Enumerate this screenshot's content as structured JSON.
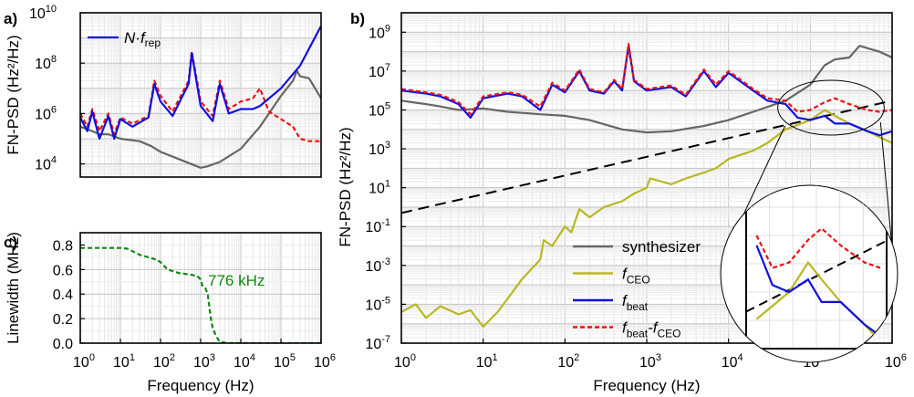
{
  "chart_data": [
    {
      "panel": "a)",
      "type": "line",
      "ylabel": "FN-PSD (Hz²/Hz)",
      "xscale": "log",
      "yscale": "log",
      "xlim": [
        1,
        1000000
      ],
      "ylim": [
        3000,
        10000000000
      ],
      "y_ticks": [
        {
          "base": "10",
          "exp": "4"
        },
        {
          "base": "10",
          "exp": "6"
        },
        {
          "base": "10",
          "exp": "8"
        },
        {
          "base": "10",
          "exp": "10"
        }
      ],
      "grid": true,
      "legend": {
        "placement": "top-left",
        "entries": [
          {
            "label": "N·f",
            "sub": "rep",
            "color": "#1010e0",
            "dash": "solid"
          }
        ]
      },
      "series": [
        {
          "name": "synthesizer",
          "color": "#666666",
          "dash": "solid",
          "x": [
            1,
            2,
            3,
            5,
            10,
            30,
            60,
            100,
            300,
            1000,
            1500,
            3000,
            10000,
            30000,
            100000,
            200000,
            250000,
            300000,
            500000,
            1000000
          ],
          "y": [
            300000,
            200000,
            150000,
            150000,
            100000,
            80000,
            50000,
            30000,
            15000,
            7000,
            8000,
            12000,
            40000,
            300000,
            5000000,
            20000000,
            50000000,
            30000000,
            25000000,
            4000000
          ]
        },
        {
          "name": "f_beat - f_CEO (a)",
          "color": "#ee1111",
          "dash": "dashed",
          "x": [
            1,
            1.5,
            2,
            3,
            5,
            7,
            10,
            20,
            50,
            70,
            100,
            200,
            500,
            600,
            1000,
            2000,
            3000,
            5000,
            10000,
            20000,
            30000,
            50000,
            100000,
            200000,
            300000,
            500000,
            1000000
          ],
          "y": [
            1000000,
            300000,
            1500000,
            200000,
            1000000,
            150000,
            700000,
            400000,
            800000,
            20000000,
            5000000,
            1200000,
            20000000,
            300000000,
            3000000,
            800000,
            20000000,
            1500000,
            3000000,
            4000000,
            10000000,
            1200000,
            600000,
            300000,
            100000,
            80000,
            80000
          ]
        },
        {
          "name": "N·f_rep",
          "color": "#1010e0",
          "dash": "solid",
          "x": [
            1,
            1.5,
            2,
            3,
            5,
            7,
            10,
            20,
            50,
            70,
            100,
            200,
            500,
            600,
            1000,
            2000,
            3000,
            5000,
            10000,
            20000,
            30000,
            100000,
            300000,
            1000000
          ],
          "y": [
            700000,
            200000,
            1200000,
            100000,
            800000,
            100000,
            600000,
            300000,
            700000,
            15000000,
            3000000,
            800000,
            15000000,
            250000000,
            2000000,
            500000,
            15000000,
            1000000,
            1500000,
            1500000,
            2000000,
            10000000,
            80000000,
            3000000000
          ]
        }
      ]
    },
    {
      "panel": "b)",
      "type": "line",
      "ylabel": "FN-PSD (Hz²/Hz)",
      "xlabel": "Frequency (Hz)",
      "xscale": "log",
      "yscale": "log",
      "xlim": [
        1,
        1000000
      ],
      "ylim": [
        1e-07,
        10000000000
      ],
      "x_ticks": [
        {
          "base": "10",
          "exp": "0"
        },
        {
          "base": "10",
          "exp": "1"
        },
        {
          "base": "10",
          "exp": "2"
        },
        {
          "base": "10",
          "exp": "3"
        },
        {
          "base": "10",
          "exp": "4"
        },
        {
          "base": "10",
          "exp": "5"
        },
        {
          "base": "10",
          "exp": "6"
        }
      ],
      "y_ticks": [
        {
          "base": "10",
          "exp": "-7"
        },
        {
          "base": "10",
          "exp": "-5"
        },
        {
          "base": "10",
          "exp": "-3"
        },
        {
          "base": "10",
          "exp": "-1"
        },
        {
          "base": "10",
          "exp": "1"
        },
        {
          "base": "10",
          "exp": "3"
        },
        {
          "base": "10",
          "exp": "5"
        },
        {
          "base": "10",
          "exp": "7"
        },
        {
          "base": "10",
          "exp": "9"
        }
      ],
      "grid": true,
      "legend": {
        "placement": "bottom-center",
        "entries": [
          {
            "label": "synthesizer",
            "color": "#666666",
            "dash": "solid"
          },
          {
            "label": "f",
            "sub": "CEO",
            "color": "#b8b820",
            "dash": "solid"
          },
          {
            "label": "f",
            "sub": "beat",
            "color": "#1010e0",
            "dash": "solid"
          },
          {
            "label": "f",
            "sub": "beat",
            "label2": "-f",
            "sub2": "CEO",
            "color": "#ee1111",
            "dash": "dashed"
          }
        ]
      },
      "reference_line": {
        "color": "#000000",
        "dash": "long-dashed",
        "x": [
          1,
          1000000
        ],
        "y": [
          0.5,
          300000
        ]
      },
      "series": [
        {
          "name": "synthesizer",
          "color": "#666666",
          "dash": "solid",
          "x": [
            1,
            2,
            3,
            5,
            10,
            20,
            50,
            100,
            200,
            500,
            1000,
            2000,
            5000,
            10000,
            20000,
            50000,
            100000,
            150000,
            200000,
            300000,
            400000,
            500000,
            700000,
            1000000
          ],
          "y": [
            300000,
            200000,
            150000,
            100000,
            120000,
            80000,
            60000,
            50000,
            30000,
            10000,
            7000,
            8000,
            15000,
            30000,
            80000,
            300000,
            2000000,
            20000000,
            40000000,
            50000000,
            200000000,
            150000000,
            100000000,
            50000000
          ]
        },
        {
          "name": "f_CEO",
          "color": "#b8b820",
          "dash": "solid",
          "x": [
            1,
            1.5,
            2,
            3,
            5,
            7,
            10,
            15,
            20,
            30,
            50,
            55,
            70,
            100,
            120,
            150,
            200,
            300,
            500,
            700,
            1000,
            1100,
            2000,
            3000,
            5000,
            7000,
            10000,
            20000,
            30000,
            50000,
            100000,
            150000,
            200000,
            300000,
            500000,
            700000,
            1000000
          ],
          "y": [
            4e-06,
            1e-05,
            2e-06,
            8e-06,
            3e-06,
            5e-06,
            7e-07,
            4e-06,
            2e-05,
            0.0002,
            0.002,
            0.02,
            0.01,
            0.1,
            0.05,
            0.8,
            0.3,
            1,
            2,
            5,
            10,
            30,
            15,
            30,
            60,
            100,
            300,
            800,
            2000,
            10000,
            30000,
            100000,
            50000,
            20000,
            8000,
            4000,
            2000
          ]
        },
        {
          "name": "f_beat",
          "color": "#1010e0",
          "dash": "solid",
          "x": [
            1,
            2,
            3,
            5,
            7,
            10,
            20,
            30,
            50,
            70,
            100,
            150,
            200,
            300,
            400,
            500,
            600,
            700,
            1000,
            2000,
            3000,
            5000,
            7000,
            10000,
            20000,
            30000,
            50000,
            70000,
            100000,
            150000,
            200000,
            300000,
            500000,
            700000,
            1000000
          ],
          "y": [
            1000000,
            700000,
            500000,
            200000,
            40000,
            400000,
            700000,
            500000,
            100000,
            2000000,
            800000,
            10000000,
            1000000,
            700000,
            3000000,
            1000000,
            200000000,
            3000000,
            1000000,
            1500000,
            500000,
            10000000,
            1500000,
            8000000,
            1000000,
            300000,
            200000,
            40000,
            30000,
            50000,
            20000,
            20000,
            8000,
            5000,
            8000
          ]
        },
        {
          "name": "f_beat - f_CEO",
          "color": "#ee1111",
          "dash": "dashed",
          "x": [
            1,
            2,
            3,
            5,
            7,
            10,
            20,
            30,
            50,
            70,
            100,
            150,
            200,
            300,
            400,
            500,
            600,
            700,
            1000,
            2000,
            3000,
            5000,
            7000,
            10000,
            20000,
            30000,
            50000,
            70000,
            100000,
            150000,
            200000,
            300000,
            500000,
            700000,
            1000000
          ],
          "y": [
            1200000,
            800000,
            600000,
            250000,
            60000,
            500000,
            800000,
            600000,
            150000,
            2500000,
            1000000,
            12000000,
            1200000,
            800000,
            3500000,
            1200000,
            250000000,
            3500000,
            1200000,
            1800000,
            600000,
            12000000,
            2000000,
            10000000,
            1200000,
            400000,
            300000,
            80000,
            100000,
            250000,
            400000,
            200000,
            100000,
            80000,
            100000
          ]
        }
      ],
      "inset": {
        "type": "magnified-circle",
        "x_range": [
          40000,
          800000
        ]
      }
    },
    {
      "panel": "c)",
      "type": "line",
      "ylabel": "Linewidth (MHz)",
      "xlabel": "Frequency (Hz)",
      "xscale": "log",
      "xlim": [
        1,
        1000000
      ],
      "ylim": [
        0,
        0.9
      ],
      "x_ticks": [
        {
          "base": "10",
          "exp": "0"
        },
        {
          "base": "10",
          "exp": "1"
        },
        {
          "base": "10",
          "exp": "2"
        },
        {
          "base": "10",
          "exp": "3"
        },
        {
          "base": "10",
          "exp": "4"
        },
        {
          "base": "10",
          "exp": "5"
        },
        {
          "base": "10",
          "exp": "6"
        }
      ],
      "y_ticks": [
        "0.0",
        "0.2",
        "0.4",
        "0.6",
        "0.8"
      ],
      "grid": true,
      "annotation": "776 kHz",
      "annotation_color": "#118811",
      "series": [
        {
          "name": "linewidth",
          "color": "#118811",
          "dash": "dashed",
          "x": [
            1,
            2,
            5,
            10,
            15,
            20,
            30,
            50,
            80,
            100,
            150,
            300,
            500,
            800,
            1000,
            1100,
            1300,
            1500,
            1800,
            2000,
            2500,
            3000,
            5000,
            10000,
            100000,
            1000000
          ],
          "y": [
            0.776,
            0.776,
            0.776,
            0.776,
            0.77,
            0.75,
            0.72,
            0.7,
            0.68,
            0.66,
            0.6,
            0.57,
            0.56,
            0.55,
            0.52,
            0.47,
            0.45,
            0.4,
            0.2,
            0.12,
            0.05,
            0.01,
            0.0,
            0.0,
            0.0,
            0.0
          ]
        }
      ]
    }
  ]
}
